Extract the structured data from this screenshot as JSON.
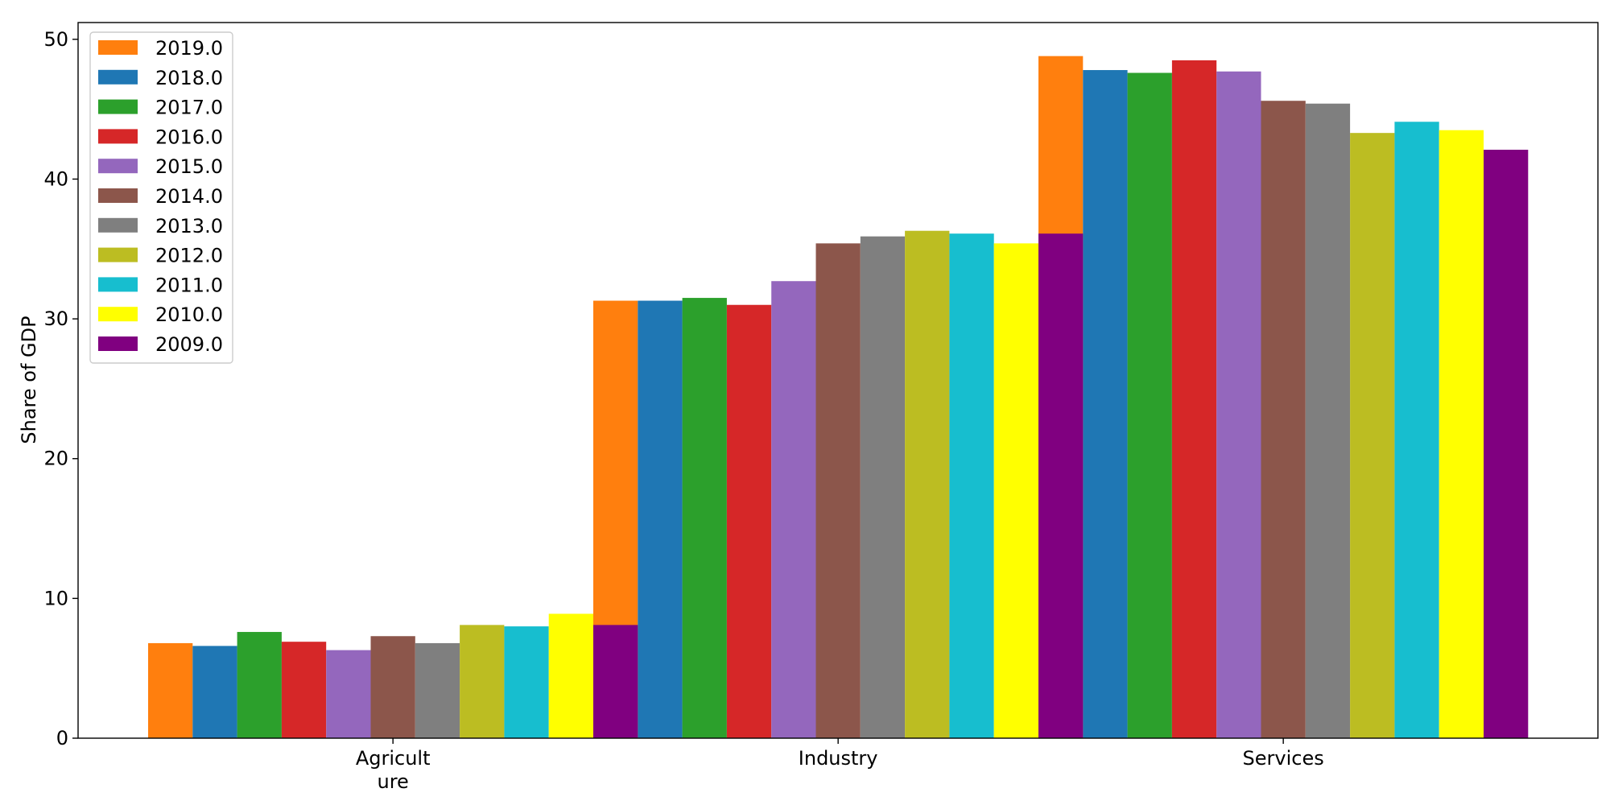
{
  "chart_data": {
    "type": "bar",
    "title": "",
    "xlabel": "",
    "ylabel": "Share of GDP",
    "categories": [
      "Agricult\nure",
      "Industry",
      "Services"
    ],
    "ylim": [
      0,
      51.2
    ],
    "yticks": [
      0,
      10,
      20,
      30,
      40,
      50
    ],
    "grid": false,
    "legend_position": "top-left",
    "series": [
      {
        "name": "2019.0",
        "color": "#ff7f0e",
        "values": [
          6.8,
          31.3,
          48.8
        ]
      },
      {
        "name": "2018.0",
        "color": "#1f77b4",
        "values": [
          6.6,
          31.3,
          47.8
        ]
      },
      {
        "name": "2017.0",
        "color": "#2ca02c",
        "values": [
          7.6,
          31.5,
          47.6
        ]
      },
      {
        "name": "2016.0",
        "color": "#d62728",
        "values": [
          6.9,
          31.0,
          48.5
        ]
      },
      {
        "name": "2015.0",
        "color": "#9467bd",
        "values": [
          6.3,
          32.7,
          47.7
        ]
      },
      {
        "name": "2014.0",
        "color": "#8c564b",
        "values": [
          7.3,
          35.4,
          45.6
        ]
      },
      {
        "name": "2013.0",
        "color": "#7f7f7f",
        "values": [
          6.8,
          35.9,
          45.4
        ]
      },
      {
        "name": "2012.0",
        "color": "#bcbd22",
        "values": [
          8.1,
          36.3,
          43.3
        ]
      },
      {
        "name": "2011.0",
        "color": "#17becf",
        "values": [
          8.0,
          36.1,
          44.1
        ]
      },
      {
        "name": "2010.0",
        "color": "#ffff00",
        "values": [
          8.9,
          35.4,
          43.5
        ]
      },
      {
        "name": "2009.0",
        "color": "#800080",
        "values": [
          8.1,
          36.1,
          42.1
        ]
      }
    ]
  }
}
